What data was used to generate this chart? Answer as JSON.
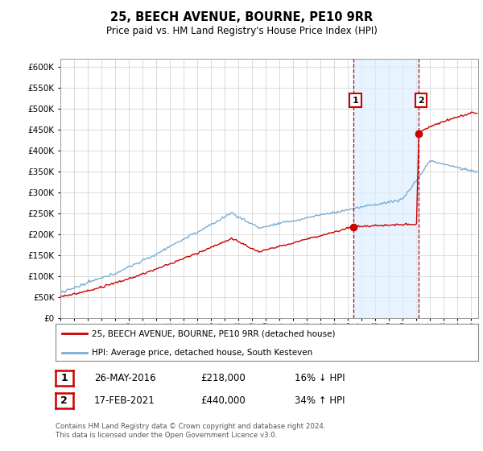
{
  "title": "25, BEECH AVENUE, BOURNE, PE10 9RR",
  "subtitle": "Price paid vs. HM Land Registry's House Price Index (HPI)",
  "legend_line1": "25, BEECH AVENUE, BOURNE, PE10 9RR (detached house)",
  "legend_line2": "HPI: Average price, detached house, South Kesteven",
  "annotation1_label": "1",
  "annotation1_date": "26-MAY-2016",
  "annotation1_year": 2016.38,
  "annotation1_price": 218000,
  "annotation1_text": "£218,000",
  "annotation1_pct": "16% ↓ HPI",
  "annotation2_label": "2",
  "annotation2_date": "17-FEB-2021",
  "annotation2_year": 2021.13,
  "annotation2_price": 440000,
  "annotation2_text": "£440,000",
  "annotation2_pct": "34% ↑ HPI",
  "footer": "Contains HM Land Registry data © Crown copyright and database right 2024.\nThis data is licensed under the Open Government Licence v3.0.",
  "hpi_color": "#7aaed4",
  "price_color": "#cc0000",
  "vline_color": "#cc0000",
  "shade_color": "#ddeeff",
  "ylim": [
    0,
    620000
  ],
  "yticks": [
    0,
    50000,
    100000,
    150000,
    200000,
    250000,
    300000,
    350000,
    400000,
    450000,
    500000,
    550000,
    600000
  ],
  "xlim_start": 1995,
  "xlim_end": 2025.5,
  "background_color": "#ffffff",
  "grid_color": "#cccccc"
}
